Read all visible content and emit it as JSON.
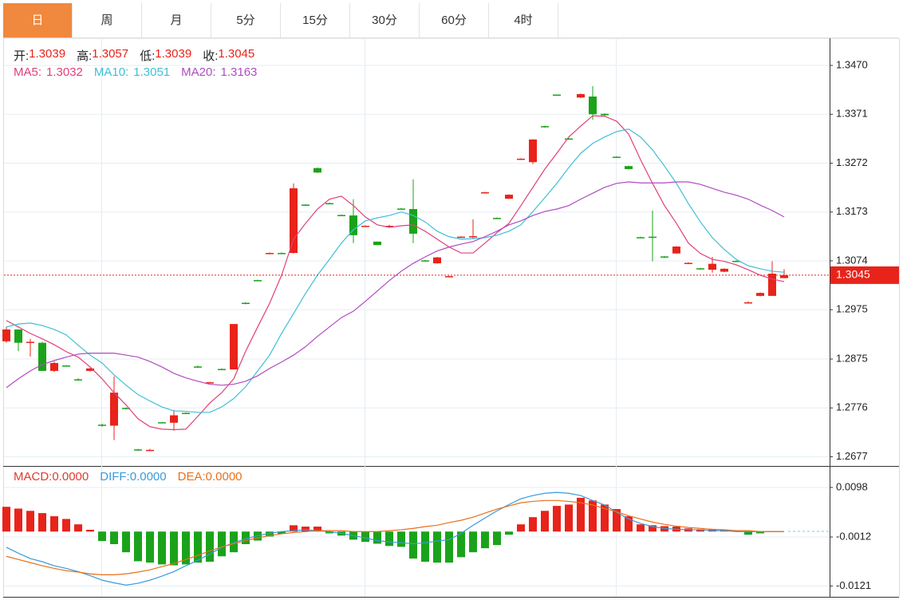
{
  "tabs": [
    {
      "label": "日",
      "active": true
    },
    {
      "label": "周",
      "active": false
    },
    {
      "label": "月",
      "active": false
    },
    {
      "label": "5分",
      "active": false
    },
    {
      "label": "15分",
      "active": false
    },
    {
      "label": "30分",
      "active": false
    },
    {
      "label": "60分",
      "active": false
    },
    {
      "label": "4时",
      "active": false
    }
  ],
  "chart_data": [
    {
      "type": "candlestick",
      "readout": [
        {
          "label": "开:",
          "value": 1.3039
        },
        {
          "label": "高:",
          "value": 1.3057
        },
        {
          "label": "低:",
          "value": 1.3039
        },
        {
          "label": "收:",
          "value": 1.3045
        }
      ],
      "readout_color": "#e8231a",
      "up_color": "#e8231a",
      "down_color": "#1aa31a",
      "open": [
        1.2911,
        1.2935,
        1.2908,
        1.2908,
        1.2851,
        1.2862,
        1.2834,
        1.2851,
        1.2742,
        1.274,
        1.2776,
        1.2692,
        1.269,
        1.2747,
        1.2746,
        1.2766,
        1.286,
        1.2827,
        1.2855,
        1.2854,
        1.2989,
        1.3035,
        1.3089,
        1.309,
        1.309,
        1.3188,
        1.3262,
        1.3191,
        1.3167,
        1.3166,
        1.3144,
        1.3113,
        1.3144,
        1.318,
        1.3179,
        1.3075,
        1.3069,
        1.3042,
        1.3122,
        1.3123,
        1.3212,
        1.3161,
        1.32,
        1.328,
        1.3274,
        1.3347,
        1.3411,
        1.3322,
        1.3405,
        1.3407,
        1.3372,
        1.3285,
        1.3266,
        1.3122,
        1.3123,
        1.3083,
        1.3089,
        1.3069,
        1.3059,
        1.3056,
        1.3052,
        1.3074,
        1.2989,
        1.3003,
        1.3003,
        1.3039
      ],
      "high": [
        1.294,
        1.2935,
        1.2916,
        1.291,
        1.287,
        1.2863,
        1.2836,
        1.2857,
        1.2744,
        1.284,
        1.2777,
        1.2693,
        1.2693,
        1.2748,
        1.2772,
        1.2767,
        1.2862,
        1.2829,
        1.2856,
        1.2946,
        1.299,
        1.3036,
        1.3091,
        1.3091,
        1.3231,
        1.3189,
        1.3263,
        1.3192,
        1.3168,
        1.3199,
        1.3146,
        1.3113,
        1.3147,
        1.3181,
        1.3239,
        1.3076,
        1.3082,
        1.3044,
        1.3124,
        1.3158,
        1.3214,
        1.3162,
        1.3209,
        1.3282,
        1.332,
        1.3348,
        1.3411,
        1.3323,
        1.3413,
        1.3428,
        1.3373,
        1.3286,
        1.3267,
        1.3123,
        1.3176,
        1.3084,
        1.3104,
        1.3071,
        1.306,
        1.3082,
        1.3059,
        1.3075,
        1.2992,
        1.301,
        1.3073,
        1.3057
      ],
      "low": [
        1.2908,
        1.2891,
        1.288,
        1.2851,
        1.2849,
        1.286,
        1.2831,
        1.285,
        1.2738,
        1.2711,
        1.2773,
        1.2689,
        1.2689,
        1.2745,
        1.273,
        1.2764,
        1.2857,
        1.2826,
        1.2853,
        1.2854,
        1.2986,
        1.3033,
        1.3088,
        1.3088,
        1.3089,
        1.3186,
        1.3252,
        1.3189,
        1.3165,
        1.311,
        1.3143,
        1.3106,
        1.3143,
        1.3178,
        1.311,
        1.3072,
        1.3068,
        1.3041,
        1.3121,
        1.3118,
        1.3211,
        1.3159,
        1.3199,
        1.3279,
        1.327,
        1.3344,
        1.3409,
        1.332,
        1.3404,
        1.336,
        1.3367,
        1.3283,
        1.3259,
        1.312,
        1.3073,
        1.308,
        1.3088,
        1.3068,
        1.3056,
        1.305,
        1.3051,
        1.3072,
        1.2988,
        1.3002,
        1.3003,
        1.3039
      ],
      "close": [
        1.2935,
        1.2908,
        1.291,
        1.2851,
        1.2867,
        1.2861,
        1.2833,
        1.2856,
        1.274,
        1.2807,
        1.2775,
        1.2691,
        1.2691,
        1.2746,
        1.2761,
        1.2765,
        1.2859,
        1.2828,
        1.2854,
        1.2946,
        1.2988,
        1.3034,
        1.309,
        1.3089,
        1.3221,
        1.3187,
        1.3253,
        1.319,
        1.3166,
        1.3126,
        1.3145,
        1.3106,
        1.3145,
        1.3179,
        1.3129,
        1.3074,
        1.3081,
        1.3043,
        1.3123,
        1.3124,
        1.3213,
        1.316,
        1.3208,
        1.3281,
        1.332,
        1.3346,
        1.341,
        1.3321,
        1.3412,
        1.3371,
        1.3369,
        1.3284,
        1.326,
        1.3121,
        1.3122,
        1.3082,
        1.3103,
        1.307,
        1.3058,
        1.3068,
        1.3058,
        1.3073,
        1.299,
        1.3009,
        1.3048,
        1.3045
      ],
      "series": [
        {
          "name": "MA5:",
          "current": 1.3032,
          "color": "#e0407a",
          "values": [
            1.2953,
            1.294,
            1.2927,
            1.2916,
            1.2904,
            1.289,
            1.2879,
            1.2859,
            1.2835,
            1.2807,
            1.2782,
            1.2754,
            1.2738,
            1.2733,
            1.2732,
            1.2733,
            1.2759,
            1.2786,
            1.2807,
            1.2835,
            1.2891,
            1.294,
            1.2988,
            1.3045,
            1.3118,
            1.315,
            1.3179,
            1.3199,
            1.3205,
            1.3186,
            1.3163,
            1.3147,
            1.3142,
            1.3145,
            1.3147,
            1.3134,
            1.3118,
            1.3102,
            1.309,
            1.309,
            1.311,
            1.3131,
            1.315,
            1.3186,
            1.3223,
            1.326,
            1.3292,
            1.3325,
            1.3347,
            1.3368,
            1.3367,
            1.3357,
            1.3331,
            1.3279,
            1.3231,
            1.3186,
            1.315,
            1.311,
            1.3089,
            1.3077,
            1.3073,
            1.3066,
            1.3056,
            1.3045,
            1.3037,
            1.3032
          ]
        },
        {
          "name": "MA10:",
          "current": 1.3051,
          "color": "#3fbfd6",
          "values": [
            1.294,
            1.2946,
            1.2948,
            1.2943,
            1.2935,
            1.2924,
            1.2903,
            1.2883,
            1.2867,
            1.2843,
            1.2822,
            1.2803,
            1.279,
            1.2778,
            1.277,
            1.2769,
            1.2767,
            1.2767,
            1.2778,
            1.2795,
            1.2819,
            1.2851,
            1.2883,
            1.2927,
            1.2967,
            1.3008,
            1.3045,
            1.3077,
            1.311,
            1.3137,
            1.3155,
            1.3161,
            1.3166,
            1.3173,
            1.3166,
            1.3153,
            1.3134,
            1.3123,
            1.3118,
            1.3119,
            1.3121,
            1.3126,
            1.3134,
            1.3147,
            1.3174,
            1.3202,
            1.3231,
            1.3263,
            1.3292,
            1.3312,
            1.3325,
            1.3336,
            1.3341,
            1.3325,
            1.3299,
            1.3266,
            1.3231,
            1.319,
            1.3153,
            1.3121,
            1.3097,
            1.3077,
            1.3064,
            1.3058,
            1.3053,
            1.3051
          ]
        },
        {
          "name": "MA20:",
          "current": 1.3163,
          "color": "#b04cc0",
          "values": [
            1.2817,
            1.2835,
            1.2851,
            1.2864,
            1.2872,
            1.2879,
            1.2885,
            1.2887,
            1.2887,
            1.2887,
            1.2883,
            1.2879,
            1.287,
            1.2859,
            1.2846,
            1.2837,
            1.283,
            1.2824,
            1.2822,
            1.2824,
            1.283,
            1.2841,
            1.2856,
            1.2869,
            1.2883,
            1.29,
            1.2921,
            1.294,
            1.2959,
            1.2972,
            1.2992,
            1.3013,
            1.3034,
            1.3053,
            1.3069,
            1.3082,
            1.3094,
            1.3102,
            1.3108,
            1.3113,
            1.3123,
            1.3134,
            1.3147,
            1.3155,
            1.3166,
            1.3174,
            1.3179,
            1.3186,
            1.3199,
            1.3211,
            1.3223,
            1.3231,
            1.3234,
            1.3232,
            1.3232,
            1.3232,
            1.3234,
            1.3234,
            1.3229,
            1.3221,
            1.3213,
            1.3207,
            1.3199,
            1.3187,
            1.3176,
            1.3163
          ]
        }
      ],
      "last_price": 1.3045,
      "last_price_color": "#e8231a",
      "ylim": [
        1.266,
        1.3525
      ],
      "yticks": [
        {
          "value": 1.347,
          "label": "1.3470"
        },
        1.3371,
        1.3272,
        1.3173,
        1.3074,
        1.2975,
        1.2875,
        1.2776,
        1.2677
      ],
      "grid": true
    },
    {
      "type": "macd",
      "up_color": "#e8231a",
      "down_color": "#1aa31a",
      "histogram": {
        "name": "MACD:",
        "color": "#e03a2e",
        "current": {
          "value": 0,
          "label": "0.0000"
        },
        "values": [
          0.0055,
          0.0051,
          0.0046,
          0.0041,
          0.0034,
          0.0028,
          0.0016,
          0.0004,
          -0.0021,
          -0.0028,
          -0.0046,
          -0.0066,
          -0.0069,
          -0.0073,
          -0.0075,
          -0.0073,
          -0.0069,
          -0.0067,
          -0.0055,
          -0.0046,
          -0.0028,
          -0.002,
          -0.0011,
          -0.0005,
          0.0014,
          0.0011,
          0.0011,
          -0.0004,
          -0.0009,
          -0.0018,
          -0.0023,
          -0.0027,
          -0.0032,
          -0.0034,
          -0.006,
          -0.0067,
          -0.0069,
          -0.0069,
          -0.0057,
          -0.0046,
          -0.0037,
          -0.003,
          -0.0007,
          0.0016,
          0.0032,
          0.0046,
          0.0057,
          0.006,
          0.0075,
          0.0069,
          0.006,
          0.005,
          0.0034,
          0.0016,
          0.0014,
          0.0012,
          0.0011,
          0.0007,
          0.0005,
          0.0005,
          0.0004,
          0.0002,
          -0.0007,
          -0.0004,
          -0.0001,
          0
        ]
      },
      "series": [
        {
          "name": "DIFF:",
          "color": "#3a9ad9",
          "current": {
            "value": 0,
            "label": "0.0000"
          },
          "values": [
            -0.0035,
            -0.0048,
            -0.006,
            -0.0067,
            -0.0076,
            -0.0082,
            -0.0089,
            -0.0098,
            -0.0108,
            -0.0114,
            -0.0119,
            -0.0115,
            -0.0108,
            -0.0099,
            -0.0089,
            -0.0076,
            -0.0064,
            -0.005,
            -0.0035,
            -0.0025,
            -0.0016,
            -0.0009,
            -0.0004,
            0,
            0.0002,
            0.0004,
            0.0002,
            0,
            -0.0004,
            -0.0009,
            -0.0014,
            -0.002,
            -0.0023,
            -0.0025,
            -0.0027,
            -0.0025,
            -0.0021,
            -0.0018,
            -0.0004,
            0.0014,
            0.003,
            0.0046,
            0.006,
            0.0073,
            0.008,
            0.0085,
            0.0087,
            0.0085,
            0.008,
            0.0069,
            0.0059,
            0.0043,
            0.0028,
            0.0018,
            0.0011,
            0.0007,
            0.0005,
            0.0004,
            0.0004,
            0.0002,
            0.0002,
            0,
            0,
            0,
            0,
            0
          ]
        },
        {
          "name": "DEA:",
          "color": "#e8701a",
          "current": {
            "value": 0,
            "label": "0.0000"
          },
          "values": [
            -0.0055,
            -0.0062,
            -0.0069,
            -0.0076,
            -0.0082,
            -0.0087,
            -0.009,
            -0.0094,
            -0.0096,
            -0.0096,
            -0.0094,
            -0.009,
            -0.0085,
            -0.0078,
            -0.0071,
            -0.0062,
            -0.0053,
            -0.0043,
            -0.0034,
            -0.0027,
            -0.002,
            -0.0014,
            -0.0009,
            -0.0005,
            -0.0002,
            0,
            0.0002,
            0.0002,
            0.0002,
            0,
            0,
            0,
            0.0002,
            0.0004,
            0.0007,
            0.0011,
            0.0014,
            0.002,
            0.0025,
            0.0032,
            0.0041,
            0.005,
            0.0057,
            0.0064,
            0.0067,
            0.0069,
            0.0069,
            0.0067,
            0.0064,
            0.0059,
            0.0051,
            0.0044,
            0.0035,
            0.0028,
            0.0021,
            0.0016,
            0.0012,
            0.0009,
            0.0007,
            0.0005,
            0.0004,
            0.0002,
            0.0002,
            0,
            0,
            0
          ]
        }
      ],
      "ylim": [
        -0.0145,
        0.0144
      ],
      "yticks": [
        0.0098,
        -0.0012,
        -0.0121
      ],
      "grid": true
    }
  ]
}
